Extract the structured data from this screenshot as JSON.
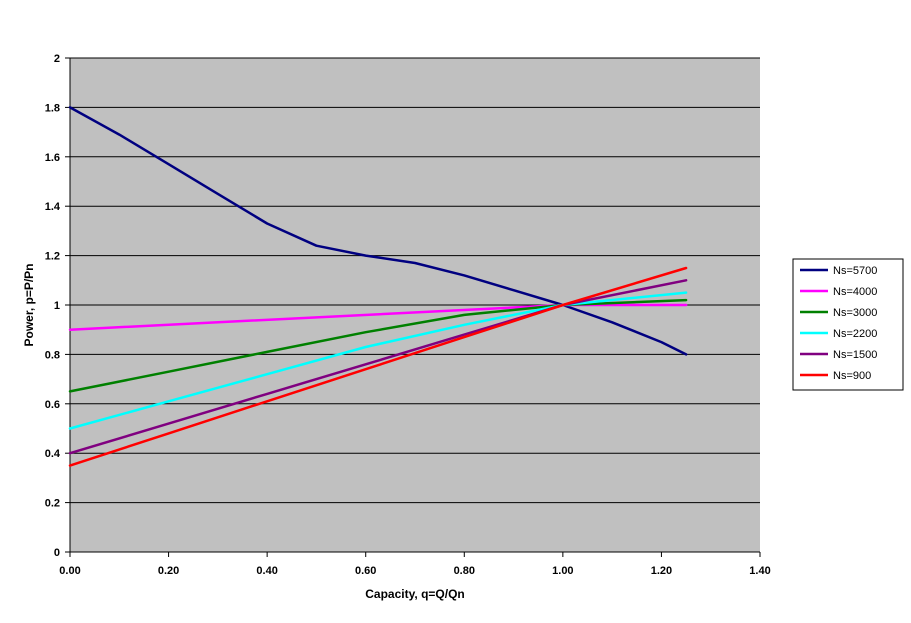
{
  "chart_data": {
    "type": "line",
    "title": "",
    "xlabel": "Capacity, q=Q/Qn",
    "ylabel": "Power, p=P/Pn",
    "xlim": [
      0,
      1.4
    ],
    "ylim": [
      0,
      2
    ],
    "x_ticks": [
      "0.00",
      "0.20",
      "0.40",
      "0.60",
      "0.80",
      "1.00",
      "1.20",
      "1.40"
    ],
    "y_ticks": [
      "0",
      "0.2",
      "0.4",
      "0.6",
      "0.8",
      "1",
      "1.2",
      "1.4",
      "1.6",
      "1.8",
      "2"
    ],
    "grid": "horizontal",
    "plot_background": "#C0C0C0",
    "legend_position": "right",
    "series": [
      {
        "name": "Ns=5700",
        "color": "#000080",
        "x": [
          0,
          0.1,
          0.2,
          0.3,
          0.4,
          0.5,
          0.6,
          0.7,
          0.8,
          0.9,
          1.0,
          1.1,
          1.2,
          1.25
        ],
        "y": [
          1.8,
          1.69,
          1.57,
          1.45,
          1.33,
          1.24,
          1.2,
          1.17,
          1.12,
          1.06,
          1.0,
          0.93,
          0.85,
          0.8
        ]
      },
      {
        "name": "Ns=4000",
        "color": "#FF00FF",
        "x": [
          0,
          1.0,
          1.25
        ],
        "y": [
          0.9,
          1.0,
          1.0
        ]
      },
      {
        "name": "Ns=3000",
        "color": "#008000",
        "x": [
          0,
          0.2,
          0.4,
          0.6,
          0.8,
          1.0,
          1.25
        ],
        "y": [
          0.65,
          0.73,
          0.81,
          0.89,
          0.96,
          1.0,
          1.02
        ]
      },
      {
        "name": "Ns=2200",
        "color": "#00FFFF",
        "x": [
          0,
          0.2,
          0.4,
          0.6,
          0.8,
          1.0,
          1.25
        ],
        "y": [
          0.5,
          0.61,
          0.72,
          0.83,
          0.92,
          1.0,
          1.05
        ]
      },
      {
        "name": "Ns=1500",
        "color": "#800080",
        "x": [
          0,
          0.2,
          0.4,
          0.6,
          0.8,
          1.0,
          1.25
        ],
        "y": [
          0.4,
          0.52,
          0.64,
          0.76,
          0.88,
          1.0,
          1.1
        ]
      },
      {
        "name": "Ns=900",
        "color": "#FF0000",
        "x": [
          0,
          0.2,
          0.4,
          0.6,
          0.8,
          1.0,
          1.25
        ],
        "y": [
          0.35,
          0.48,
          0.61,
          0.74,
          0.87,
          1.0,
          1.15
        ]
      }
    ]
  }
}
